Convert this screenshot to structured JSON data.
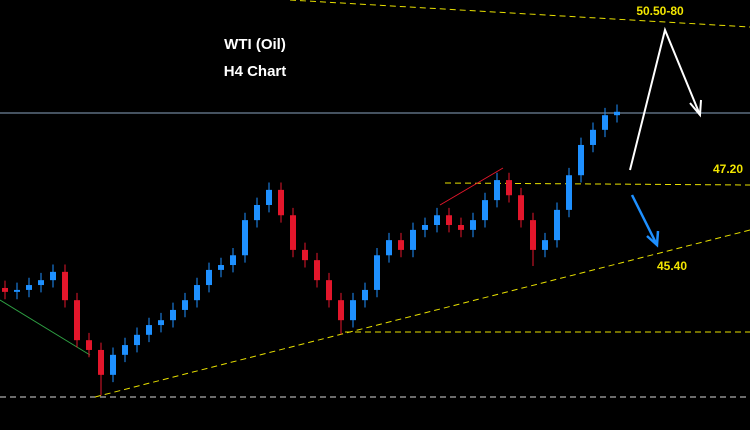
{
  "chart_data": {
    "type": "candlestick",
    "title": "WTI (Oil)",
    "subtitle": "H4 Chart",
    "annotations": [
      "50.50-80",
      "47.20",
      "45.40"
    ],
    "up_color": "#1e90ff",
    "down_color": "#e3162b",
    "ylim": [
      42.14,
      50.95
    ],
    "open": [
      45.05,
      44.97,
      45.01,
      45.11,
      45.21,
      45.38,
      44.8,
      43.98,
      43.78,
      43.27,
      43.68,
      43.88,
      44.09,
      44.29,
      44.39,
      44.6,
      44.8,
      45.11,
      45.42,
      45.52,
      45.72,
      46.44,
      46.75,
      47.06,
      46.54,
      45.83,
      45.62,
      45.21,
      44.8,
      44.39,
      44.8,
      45.01,
      45.72,
      46.03,
      45.83,
      46.24,
      46.34,
      46.54,
      46.34,
      46.24,
      46.44,
      46.85,
      47.26,
      46.95,
      46.44,
      45.83,
      46.03,
      46.65,
      47.36,
      47.98,
      48.29,
      48.59
    ],
    "high": [
      45.2,
      45.16,
      45.26,
      45.36,
      45.53,
      45.53,
      44.95,
      44.13,
      43.93,
      43.83,
      44.03,
      44.24,
      44.44,
      44.54,
      44.75,
      44.95,
      45.26,
      45.57,
      45.67,
      45.87,
      46.59,
      46.9,
      47.21,
      47.21,
      46.69,
      45.98,
      45.77,
      45.36,
      44.95,
      44.95,
      45.16,
      45.87,
      46.18,
      46.18,
      46.39,
      46.49,
      46.69,
      46.69,
      46.49,
      46.59,
      47.0,
      47.41,
      47.41,
      47.1,
      46.59,
      46.18,
      46.8,
      47.51,
      48.13,
      48.44,
      48.74,
      48.81
    ],
    "low": [
      44.82,
      44.82,
      44.86,
      44.96,
      45.06,
      44.65,
      43.83,
      43.63,
      42.85,
      43.12,
      43.53,
      43.73,
      43.94,
      44.14,
      44.24,
      44.45,
      44.65,
      44.96,
      45.27,
      45.37,
      45.57,
      46.29,
      46.6,
      46.39,
      45.68,
      45.47,
      45.06,
      44.65,
      44.1,
      44.24,
      44.65,
      44.86,
      45.57,
      45.68,
      45.68,
      46.09,
      46.19,
      46.19,
      46.09,
      46.09,
      46.29,
      46.7,
      46.8,
      46.29,
      45.5,
      45.68,
      45.88,
      46.5,
      47.21,
      47.83,
      48.14,
      48.44
    ],
    "close": [
      44.97,
      45.01,
      45.11,
      45.21,
      45.38,
      44.8,
      43.98,
      43.78,
      43.27,
      43.68,
      43.88,
      44.09,
      44.29,
      44.39,
      44.6,
      44.8,
      45.11,
      45.42,
      45.52,
      45.72,
      46.44,
      46.75,
      47.06,
      46.54,
      45.83,
      45.62,
      45.21,
      44.8,
      44.39,
      44.8,
      45.01,
      45.72,
      46.03,
      45.83,
      46.24,
      46.34,
      46.54,
      46.34,
      46.24,
      46.44,
      46.85,
      47.26,
      46.95,
      46.44,
      45.83,
      46.03,
      46.65,
      47.36,
      47.98,
      48.29,
      48.59,
      48.66
    ]
  }
}
